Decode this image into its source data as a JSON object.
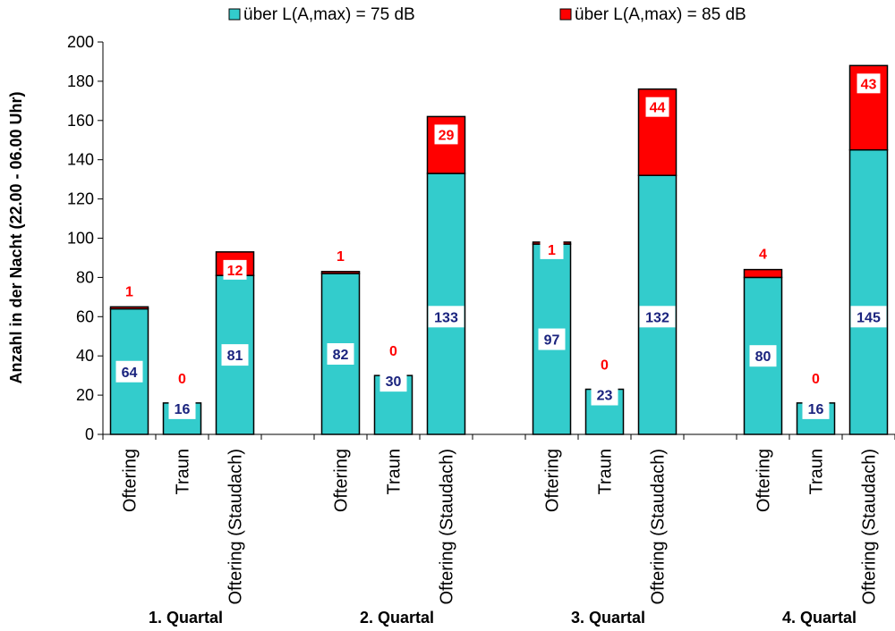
{
  "chart_data": {
    "type": "bar",
    "stacked": true,
    "title": "",
    "xlabel": "",
    "ylabel": "Anzahl in der Nacht (22.00 - 06.00 Uhr)",
    "ylim": [
      0,
      200
    ],
    "yticks": [
      0,
      20,
      40,
      60,
      80,
      100,
      120,
      140,
      160,
      180,
      200
    ],
    "grid": false,
    "legend_position": "top",
    "groups": [
      "1. Quartal",
      "2. Quartal",
      "3. Quartal",
      "4. Quartal"
    ],
    "categories": [
      "Oftering",
      "Traun",
      "Oftering (Staudach)",
      "Oftering",
      "Traun",
      "Oftering (Staudach)",
      "Oftering",
      "Traun",
      "Oftering (Staudach)",
      "Oftering",
      "Traun",
      "Oftering (Staudach)"
    ],
    "series": [
      {
        "name": "über L(A,max) = 75 dB",
        "color": "#33cccc",
        "values": [
          64,
          16,
          81,
          82,
          30,
          133,
          97,
          23,
          132,
          80,
          16,
          145
        ]
      },
      {
        "name": "über L(A,max) = 85 dB",
        "color": "#ff0000",
        "values": [
          1,
          0,
          12,
          1,
          0,
          29,
          1,
          0,
          44,
          4,
          0,
          43
        ]
      }
    ]
  }
}
